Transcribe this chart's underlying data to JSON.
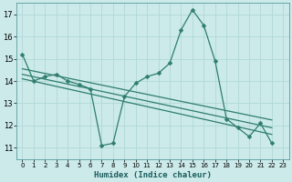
{
  "xlabel": "Humidex (Indice chaleur)",
  "bg_color": "#cceaea",
  "grid_color": "#b0d8d8",
  "line_color": "#2e7d6e",
  "xlim": [
    -0.5,
    23.5
  ],
  "ylim": [
    10.5,
    17.5
  ],
  "xticks": [
    0,
    1,
    2,
    3,
    4,
    5,
    6,
    7,
    8,
    9,
    10,
    11,
    12,
    13,
    14,
    15,
    16,
    17,
    18,
    19,
    20,
    21,
    22,
    23
  ],
  "yticks": [
    11,
    12,
    13,
    14,
    15,
    16,
    17
  ],
  "main_x": [
    0,
    1,
    2,
    3,
    4,
    5,
    6,
    7,
    8,
    9,
    10,
    11,
    12,
    13,
    14,
    15,
    16,
    17,
    18,
    19,
    20,
    21,
    22
  ],
  "main_y": [
    15.2,
    14.0,
    14.2,
    14.3,
    14.0,
    13.85,
    13.65,
    11.1,
    11.2,
    13.3,
    13.9,
    14.2,
    14.35,
    14.8,
    16.3,
    17.2,
    16.5,
    14.9,
    12.3,
    11.9,
    11.5,
    12.1,
    11.2
  ],
  "trend1_x": [
    0,
    22
  ],
  "trend1_y": [
    14.55,
    12.25
  ],
  "trend2_x": [
    0,
    22
  ],
  "trend2_y": [
    14.3,
    11.9
  ],
  "trend3_x": [
    0,
    22
  ],
  "trend3_y": [
    14.1,
    11.6
  ]
}
